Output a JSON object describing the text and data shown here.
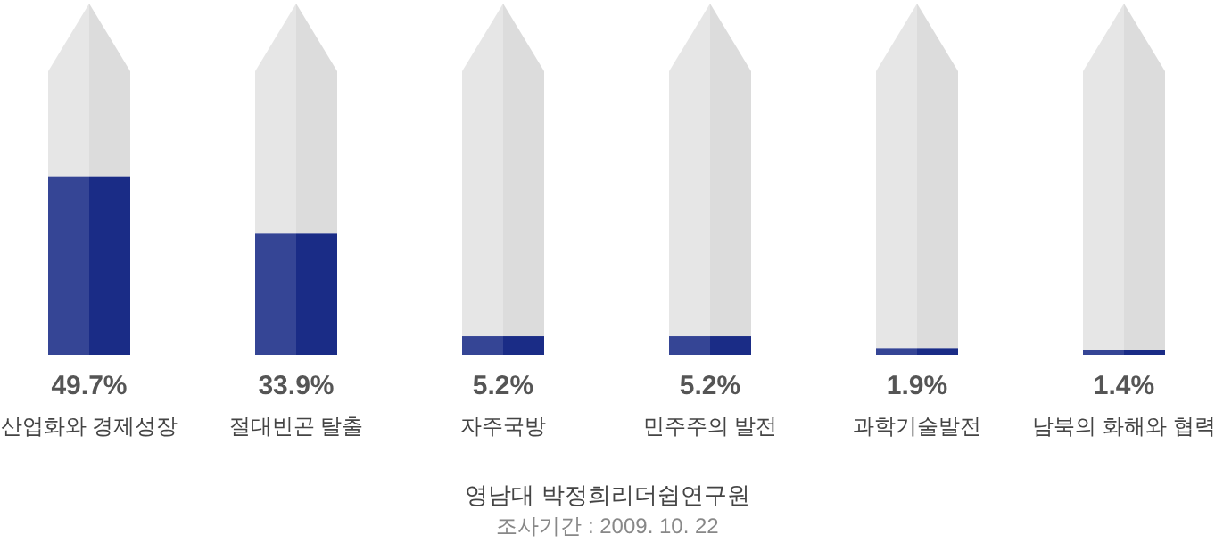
{
  "chart_data": {
    "type": "bar",
    "title": "영남대 박정희리더쉽연구원",
    "annotations": [
      "조사기간 : 2009. 10. 22"
    ],
    "categories": [
      "산업화와 경제성장",
      "절대빈곤 탈출",
      "자주국방",
      "민주주의 발전",
      "과학기술발전",
      "남북의 화해와 협력"
    ],
    "values": [
      49.7,
      33.9,
      5.2,
      5.2,
      1.9,
      1.4
    ],
    "value_labels": [
      "49.7%",
      "33.9%",
      "5.2%",
      "5.2%",
      "1.9%",
      "1.4%"
    ],
    "color": "#1a2c86"
  }
}
